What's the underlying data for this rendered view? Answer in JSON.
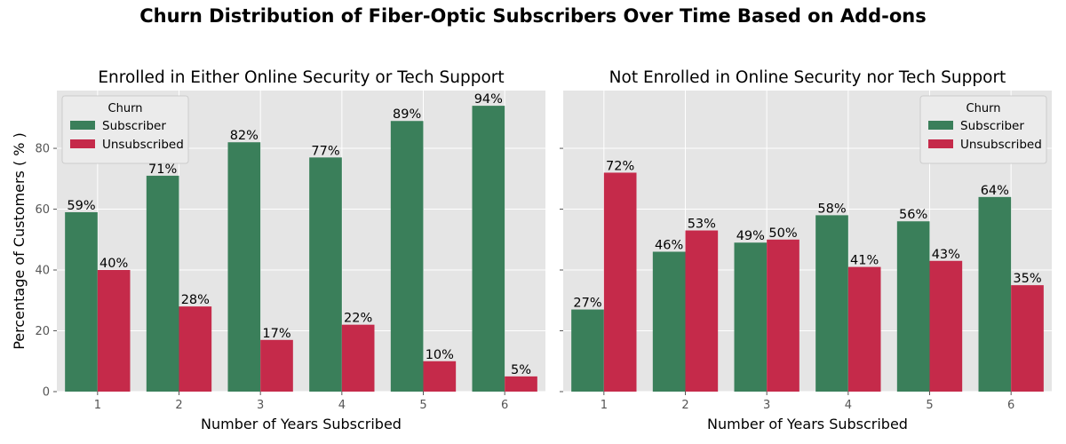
{
  "figure": {
    "title": "Churn Distribution of Fiber-Optic Subscribers Over Time Based on Add-ons"
  },
  "colors": {
    "subscriber": "#3a7f5a",
    "unsubscribed": "#c52a4a",
    "plot_background": "#e5e5e5",
    "grid": "#ffffff"
  },
  "chart_data": [
    {
      "type": "bar",
      "title": "Enrolled in Either Online Security or Tech Support",
      "xlabel": "Number of Years Subscribed",
      "ylabel": "Percentage of Customers ( % )",
      "categories": [
        "1",
        "2",
        "3",
        "4",
        "5",
        "6"
      ],
      "ylim": [
        0,
        99
      ],
      "yticks": [
        0,
        20,
        40,
        60,
        80
      ],
      "grid": true,
      "legend": {
        "title": "Churn",
        "position": "top-left"
      },
      "series": [
        {
          "name": "Subscriber",
          "values": [
            59,
            71,
            82,
            77,
            89,
            94
          ],
          "labels": [
            "59%",
            "71%",
            "82%",
            "77%",
            "89%",
            "94%"
          ]
        },
        {
          "name": "Unsubscribed",
          "values": [
            40,
            28,
            17,
            22,
            10,
            5
          ],
          "labels": [
            "40%",
            "28%",
            "17%",
            "22%",
            "10%",
            "5%"
          ]
        }
      ]
    },
    {
      "type": "bar",
      "title": "Not Enrolled in Online Security nor Tech Support",
      "xlabel": "Number of Years Subscribed",
      "ylabel": "",
      "categories": [
        "1",
        "2",
        "3",
        "4",
        "5",
        "6"
      ],
      "ylim": [
        0,
        99
      ],
      "yticks": [
        0,
        20,
        40,
        60,
        80
      ],
      "grid": true,
      "legend": {
        "title": "Churn",
        "position": "top-right"
      },
      "series": [
        {
          "name": "Subscriber",
          "values": [
            27,
            46,
            49,
            58,
            56,
            64
          ],
          "labels": [
            "27%",
            "46%",
            "49%",
            "58%",
            "56%",
            "64%"
          ]
        },
        {
          "name": "Unsubscribed",
          "values": [
            72,
            53,
            50,
            41,
            43,
            35
          ],
          "labels": [
            "72%",
            "53%",
            "50%",
            "41%",
            "43%",
            "35%"
          ]
        }
      ]
    }
  ]
}
